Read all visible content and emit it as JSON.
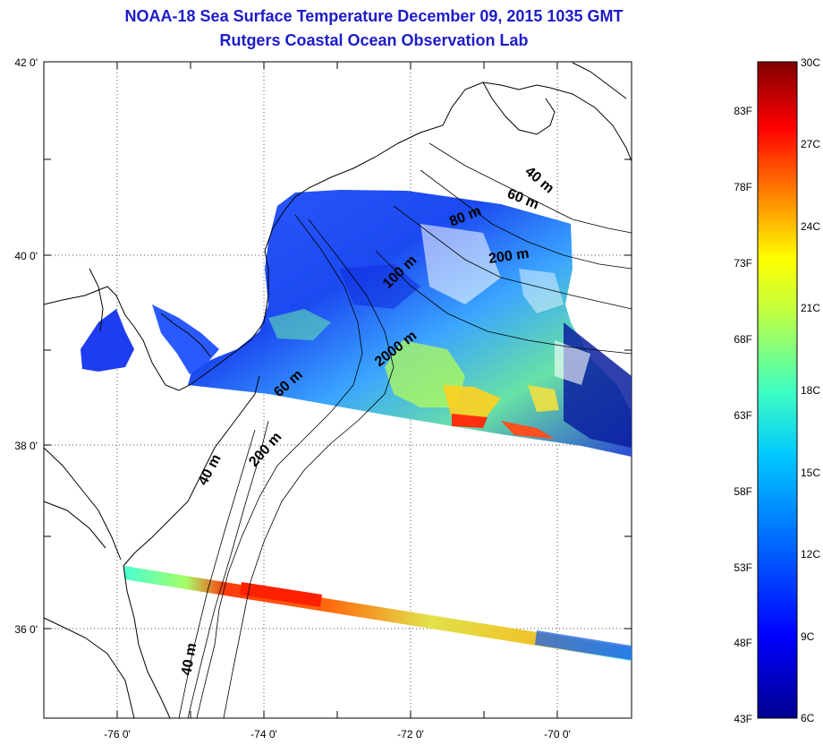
{
  "title": "NOAA-18 Sea Surface Temperature December 09, 2015 1035 GMT",
  "subtitle": "Rutgers Coastal Ocean Observation Lab",
  "lat_labels": [
    "42 0'",
    "40 0'",
    "38 0'",
    "36 0'"
  ],
  "lon_labels": [
    "-76 0'",
    "-74 0'",
    "-72 0'",
    "-70 0'"
  ],
  "contour_labels": [
    "40 m",
    "60 m",
    "80 m",
    "200 m",
    "100 m",
    "2000 m",
    "60 m",
    "200 m",
    "40 m",
    "40 m"
  ],
  "colorbar": {
    "celsius_labels": [
      "30C",
      "27C",
      "24C",
      "21C",
      "18C",
      "15C",
      "12C",
      "9C",
      "6C"
    ],
    "fahrenheit_labels": [
      "83F",
      "78F",
      "73F",
      "68F",
      "63F",
      "58F",
      "53F",
      "48F",
      "43F"
    ],
    "colors": [
      "#7f0000",
      "#ff0000",
      "#ff8000",
      "#ffff00",
      "#80ff80",
      "#00ffff",
      "#0080ff",
      "#0000ff",
      "#00008f"
    ]
  },
  "grid": "dotted",
  "map_colors": {
    "land_outline": "#000000",
    "grid": "#555555"
  }
}
